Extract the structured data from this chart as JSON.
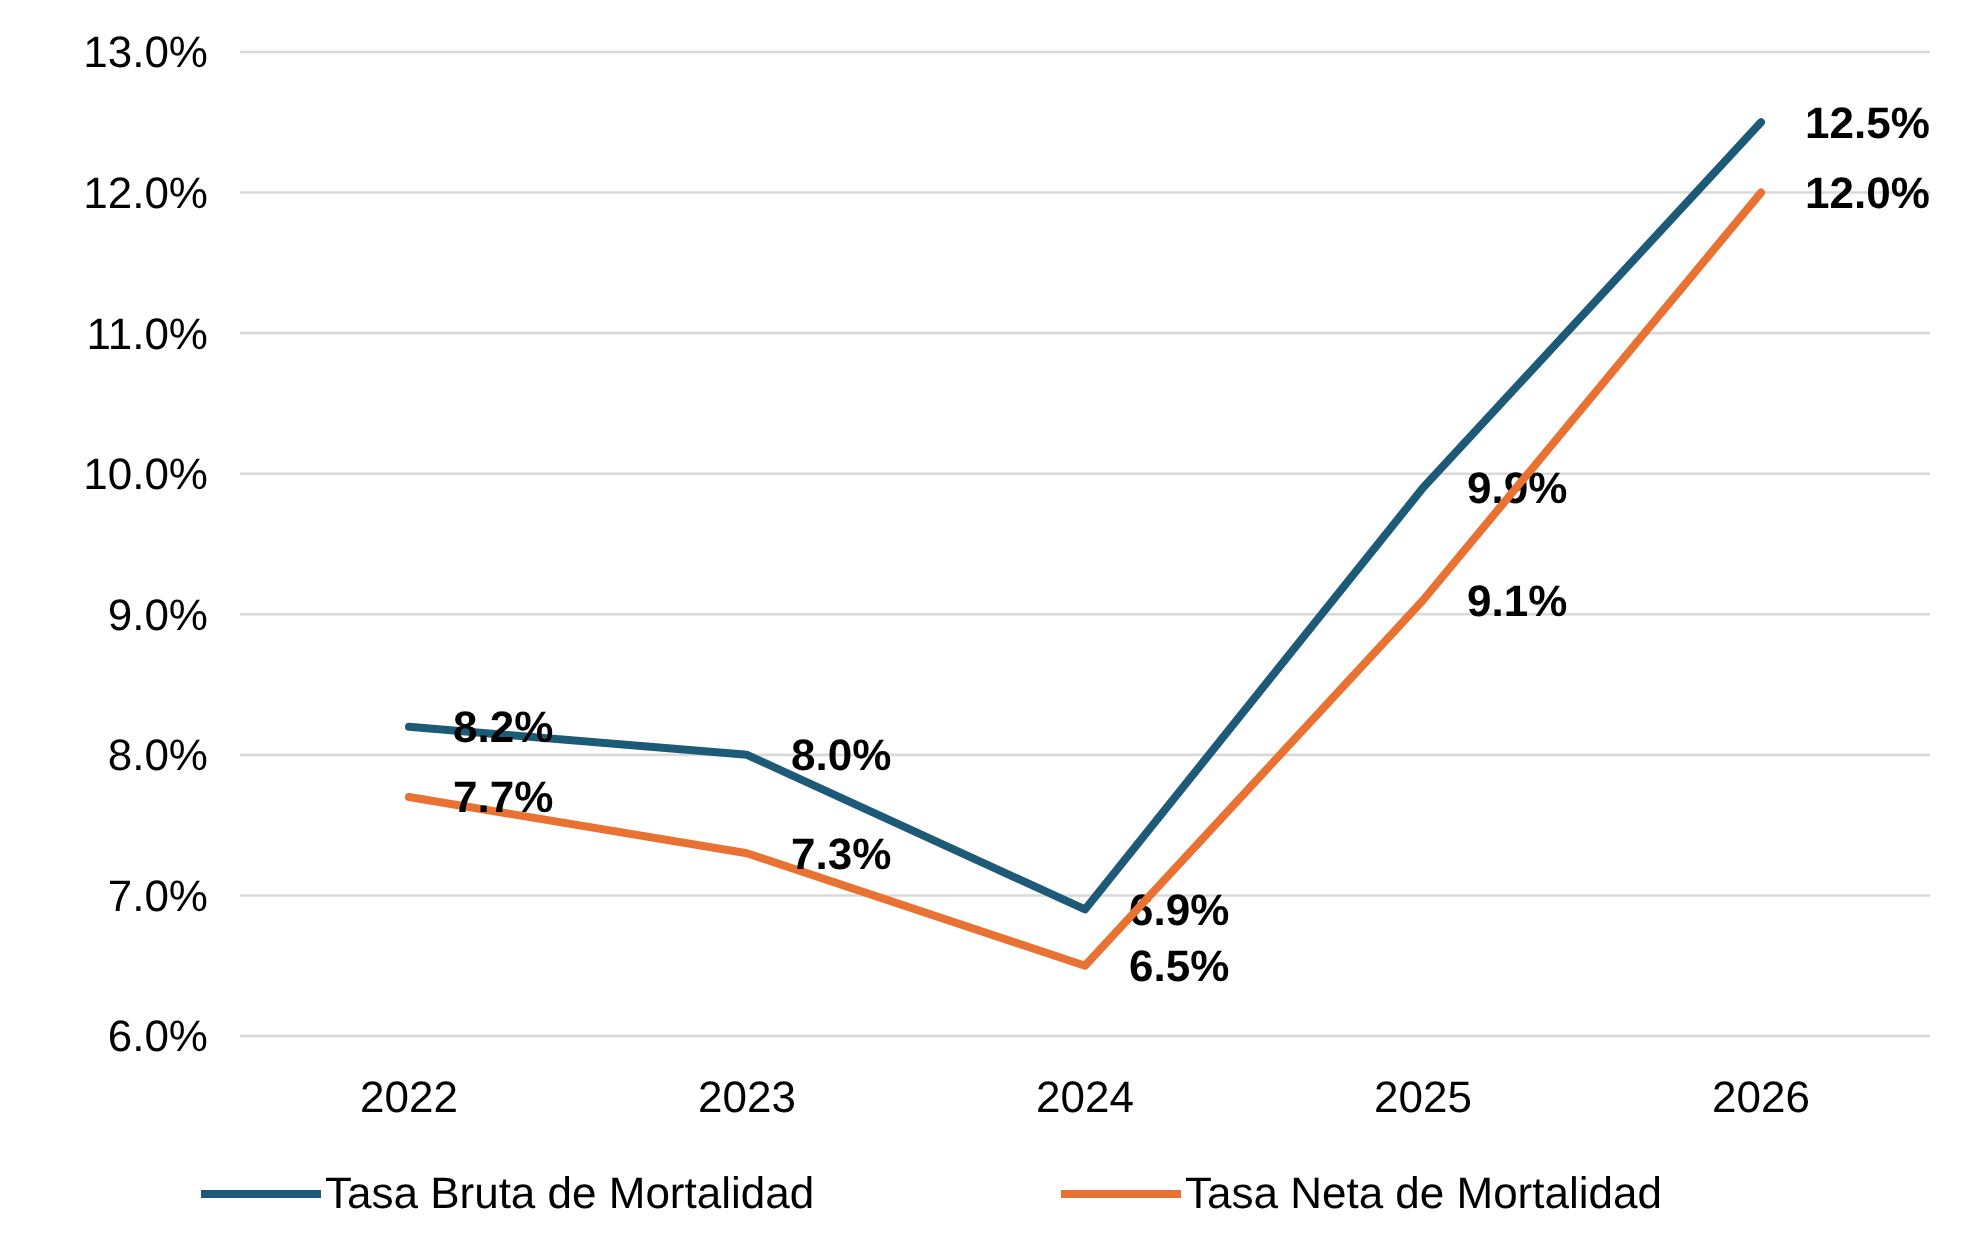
{
  "chart_data": {
    "type": "line",
    "categories": [
      "2022",
      "2023",
      "2024",
      "2025",
      "2026"
    ],
    "series": [
      {
        "name": "Tasa Bruta de Mortalidad",
        "color": "#1d5a78",
        "values": [
          8.2,
          8.0,
          6.9,
          9.9,
          12.5
        ],
        "value_labels": [
          "8.2%",
          "8.0%",
          "6.9%",
          "9.9%",
          "12.5%"
        ]
      },
      {
        "name": "Tasa Neta de Mortalidad",
        "color": "#e97132",
        "values": [
          7.7,
          7.3,
          6.5,
          9.1,
          12.0
        ],
        "value_labels": [
          "7.7%",
          "7.3%",
          "6.5%",
          "9.1%",
          "12.0%"
        ]
      }
    ],
    "ylim": [
      6,
      13
    ],
    "yticks": [
      {
        "value": 6,
        "label": "6.0%"
      },
      {
        "value": 7,
        "label": "7.0%"
      },
      {
        "value": 8,
        "label": "8.0%"
      },
      {
        "value": 9,
        "label": "9.0%"
      },
      {
        "value": 10,
        "label": "10.0%"
      },
      {
        "value": 11,
        "label": "11.0%"
      },
      {
        "value": 12,
        "label": "12.0%"
      },
      {
        "value": 13,
        "label": "13.0%"
      }
    ],
    "grid": "y",
    "legend": "bottom",
    "marker": "none",
    "line_style": "solid"
  }
}
